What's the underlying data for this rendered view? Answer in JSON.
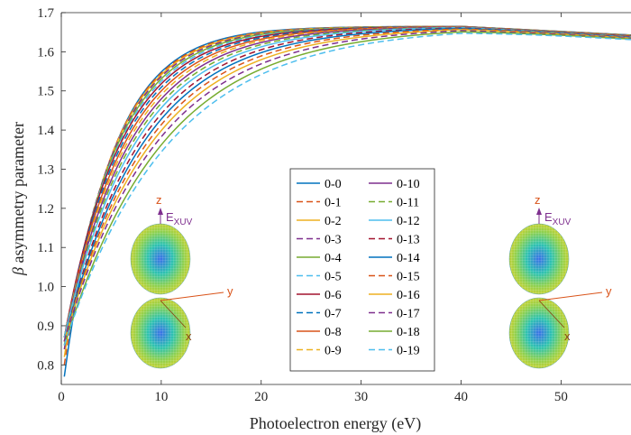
{
  "chart_data": {
    "type": "line",
    "xlabel": "Photoelectron energy (eV)",
    "ylabel_symbol": "β",
    "ylabel": "asymmetry parameter",
    "xlim": [
      0,
      57
    ],
    "ylim": [
      0.75,
      1.7
    ],
    "xticks": [
      0,
      10,
      20,
      30,
      40,
      50
    ],
    "yticks": [
      0.8,
      0.9,
      1.0,
      1.1,
      1.2,
      1.3,
      1.4,
      1.5,
      1.6,
      1.7
    ],
    "ytick_labels": [
      "0.8",
      "0.9",
      "1.0",
      "1.1",
      "1.2",
      "1.3",
      "1.4",
      "1.5",
      "1.6",
      "1.7"
    ],
    "grid": false,
    "legend_position": "center",
    "series": [
      {
        "name": "0-0",
        "color": "#0072BD",
        "dash": "solid",
        "y0": 0.77,
        "k": 0.21
      },
      {
        "name": "0-1",
        "color": "#D95319",
        "dash": "dashed",
        "y0": 0.8,
        "k": 0.204
      },
      {
        "name": "0-2",
        "color": "#EDB120",
        "dash": "solid",
        "y0": 0.82,
        "k": 0.198
      },
      {
        "name": "0-3",
        "color": "#7E2F8E",
        "dash": "dashed",
        "y0": 0.84,
        "k": 0.192
      },
      {
        "name": "0-4",
        "color": "#77AC30",
        "dash": "solid",
        "y0": 0.85,
        "k": 0.186
      },
      {
        "name": "0-5",
        "color": "#4DBEEE",
        "dash": "dashed",
        "y0": 0.86,
        "k": 0.18
      },
      {
        "name": "0-6",
        "color": "#A2142F",
        "dash": "solid",
        "y0": 0.87,
        "k": 0.174
      },
      {
        "name": "0-7",
        "color": "#0072BD",
        "dash": "dashed",
        "y0": 0.87,
        "k": 0.168
      },
      {
        "name": "0-8",
        "color": "#D95319",
        "dash": "solid",
        "y0": 0.87,
        "k": 0.162
      },
      {
        "name": "0-9",
        "color": "#EDB120",
        "dash": "dashed",
        "y0": 0.87,
        "k": 0.156
      },
      {
        "name": "0-10",
        "color": "#7E2F8E",
        "dash": "solid",
        "y0": 0.87,
        "k": 0.15
      },
      {
        "name": "0-11",
        "color": "#77AC30",
        "dash": "dashed",
        "y0": 0.87,
        "k": 0.144
      },
      {
        "name": "0-12",
        "color": "#4DBEEE",
        "dash": "solid",
        "y0": 0.87,
        "k": 0.138
      },
      {
        "name": "0-13",
        "color": "#A2142F",
        "dash": "dashed",
        "y0": 0.86,
        "k": 0.132
      },
      {
        "name": "0-14",
        "color": "#0072BD",
        "dash": "solid",
        "y0": 0.86,
        "k": 0.126
      },
      {
        "name": "0-15",
        "color": "#D95319",
        "dash": "dashed",
        "y0": 0.86,
        "k": 0.12
      },
      {
        "name": "0-16",
        "color": "#EDB120",
        "dash": "solid",
        "y0": 0.86,
        "k": 0.114
      },
      {
        "name": "0-17",
        "color": "#7E2F8E",
        "dash": "dashed",
        "y0": 0.86,
        "k": 0.108
      },
      {
        "name": "0-18",
        "color": "#77AC30",
        "dash": "solid",
        "y0": 0.85,
        "k": 0.102
      },
      {
        "name": "0-19",
        "color": "#4DBEEE",
        "dash": "dashed",
        "y0": 0.85,
        "k": 0.096
      }
    ],
    "asymptote_peak": 1.665,
    "peak_energy": 40,
    "late_slope": -0.0013,
    "insets": [
      {
        "axis_z": "z",
        "axis_y": "y",
        "axis_x": "x",
        "field_label": "E",
        "field_sub": "XUV"
      },
      {
        "axis_z": "z",
        "axis_y": "y",
        "axis_x": "x",
        "field_label": "E",
        "field_sub": "XUV"
      }
    ]
  }
}
